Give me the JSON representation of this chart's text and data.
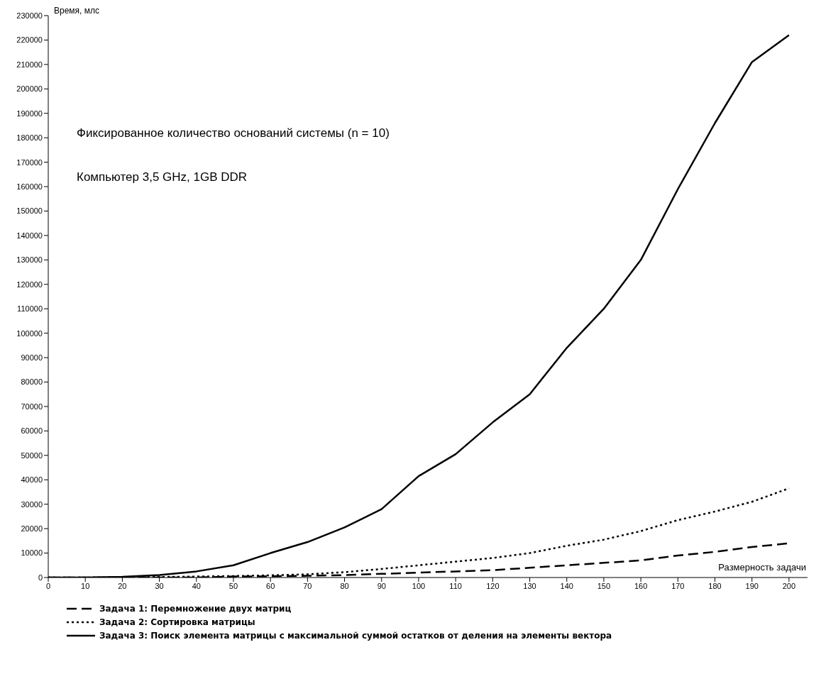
{
  "chart_data": {
    "type": "line",
    "xlabel": "Размерность задачи",
    "ylabel": "Время, млс",
    "annotations": [
      "Фиксированное количество оснований системы (n = 10)",
      "Компьютер 3,5 GHz, 1GB DDR"
    ],
    "x": [
      0,
      10,
      20,
      30,
      40,
      50,
      60,
      70,
      80,
      90,
      100,
      110,
      120,
      130,
      140,
      150,
      160,
      170,
      180,
      190,
      200
    ],
    "series": [
      {
        "name": "Задача 1: Перемножение двух матриц",
        "color": "#000000",
        "line_style": "dashed",
        "values": [
          0,
          0,
          0,
          0,
          0,
          400,
          500,
          700,
          1000,
          1500,
          2000,
          2500,
          3000,
          4000,
          5000,
          6000,
          7000,
          9000,
          10500,
          12500,
          14000
        ]
      },
      {
        "name": "Задача 2: Сортировка матрицы",
        "color": "#000000",
        "line_style": "dotted",
        "values": [
          0,
          0,
          100,
          200,
          400,
          600,
          900,
          1300,
          2200,
          3500,
          5000,
          6500,
          8000,
          10000,
          13000,
          15500,
          19000,
          23500,
          27000,
          31000,
          36500
        ]
      },
      {
        "name": "Задача 3: Поиск элемента матрицы с максимальной суммой остатков от деления на элементы вектора",
        "color": "#000000",
        "line_style": "solid",
        "values": [
          0,
          0,
          300,
          1000,
          2500,
          5000,
          10000,
          14500,
          20500,
          28000,
          41500,
          50500,
          63500,
          75000,
          94000,
          110000,
          130000,
          159000,
          186000,
          211000,
          222000
        ]
      }
    ],
    "xlim": [
      0,
      205
    ],
    "xticks": [
      0,
      10,
      20,
      30,
      40,
      50,
      60,
      70,
      80,
      90,
      100,
      110,
      120,
      130,
      140,
      150,
      160,
      170,
      180,
      190,
      200
    ],
    "ylim": [
      0,
      230000
    ],
    "yticks": [
      0,
      10000,
      20000,
      30000,
      40000,
      50000,
      60000,
      70000,
      80000,
      90000,
      100000,
      110000,
      120000,
      130000,
      140000,
      150000,
      160000,
      170000,
      180000,
      190000,
      200000,
      210000,
      220000,
      230000
    ],
    "grid": false,
    "legend": "bottom",
    "marker": "none"
  }
}
